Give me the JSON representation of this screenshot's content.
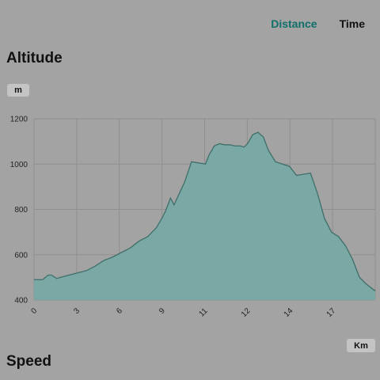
{
  "tabs": [
    {
      "label": "Distance",
      "active": true
    },
    {
      "label": "Time",
      "active": false
    }
  ],
  "altitude_section": {
    "title": "Altitude",
    "y_unit": "m",
    "x_unit": "Km"
  },
  "speed_section": {
    "title": "Speed"
  },
  "colors": {
    "accent": "#0f6f6a",
    "area_fill": "#7aa9a5",
    "area_stroke": "#3f6f6a",
    "grid": "#8f8f8f"
  },
  "chart_data": {
    "type": "area",
    "title": "Altitude",
    "ylabel": "m",
    "xlabel": "Km",
    "ylim": [
      400,
      1200
    ],
    "xlim": [
      0,
      19.5
    ],
    "yticks": [
      400,
      600,
      800,
      1000,
      1200
    ],
    "xtick_labels": [
      "0",
      "3",
      "6",
      "9",
      "11",
      "12",
      "14",
      "17"
    ],
    "grid": true,
    "series": [
      {
        "x": [
          0,
          0.5,
          0.8,
          1.0,
          1.3,
          1.5,
          2.0,
          2.5,
          3.0,
          3.5,
          4.0,
          4.5,
          5.0,
          5.5,
          6.0,
          6.5,
          7.0,
          7.3,
          7.5,
          7.8,
          8.0,
          8.3,
          8.6,
          9.0,
          9.4,
          9.8,
          10.0,
          10.3,
          10.6,
          10.9,
          11.2,
          11.5,
          11.8,
          12.0,
          12.2,
          12.5,
          12.8,
          13.1,
          13.4,
          13.8,
          14.2,
          14.6,
          15.0,
          15.4,
          15.8,
          16.2,
          16.6,
          17.0,
          17.4,
          17.8,
          18.2,
          18.6,
          19.0,
          19.5
        ],
        "y": [
          490,
          490,
          510,
          510,
          495,
          500,
          510,
          520,
          530,
          550,
          575,
          590,
          610,
          630,
          660,
          680,
          720,
          760,
          790,
          850,
          820,
          870,
          920,
          1010,
          1005,
          1000,
          1040,
          1080,
          1090,
          1085,
          1085,
          1080,
          1080,
          1075,
          1090,
          1130,
          1140,
          1120,
          1060,
          1010,
          1000,
          990,
          950,
          955,
          960,
          870,
          760,
          700,
          680,
          640,
          580,
          500,
          470,
          440
        ]
      }
    ]
  }
}
